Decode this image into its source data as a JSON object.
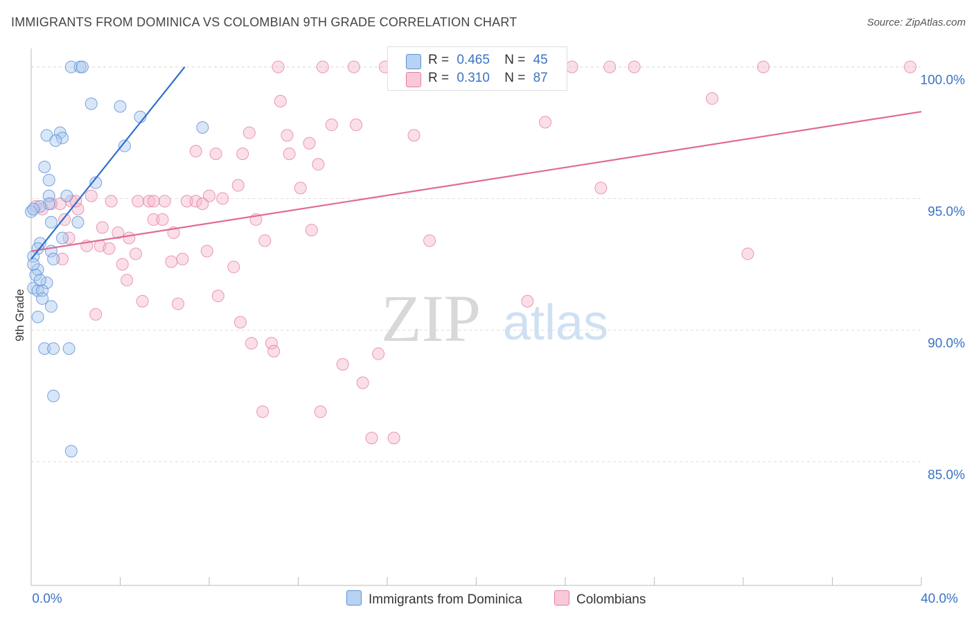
{
  "title": "IMMIGRANTS FROM DOMINICA VS COLOMBIAN 9TH GRADE CORRELATION CHART",
  "source": "Source: ZipAtlas.com",
  "watermark": {
    "zip": "ZIP",
    "atlas": "atlas"
  },
  "legend": {
    "rows": [
      {
        "r_label": "R =",
        "r_value": "0.465",
        "n_label": "N =",
        "n_value": "45"
      },
      {
        "r_label": "R =",
        "r_value": "0.310",
        "n_label": "N =",
        "n_value": "87"
      }
    ]
  },
  "bottom_legend": {
    "series1": "Immigrants from Dominica",
    "series2": "Colombians"
  },
  "colors": {
    "series1_fill": "#a8c8f0",
    "series1_stroke": "#5b8fd6",
    "series1_line": "#2d6fd0",
    "series2_fill": "#f7b8cd",
    "series2_stroke": "#e27fa2",
    "series2_line": "#e06a96",
    "axis_label": "#3a73c4",
    "grid": "#dddddd"
  },
  "chart_data": {
    "type": "scatter",
    "title": "IMMIGRANTS FROM DOMINICA VS COLOMBIAN 9TH GRADE CORRELATION CHART",
    "xlabel": "",
    "ylabel": "9th Grade",
    "xlim": [
      0,
      40
    ],
    "ylim": [
      80.3,
      100.7
    ],
    "x_tick_labels": [
      "0.0%",
      "40.0%"
    ],
    "y_ticks": [
      85,
      90,
      95,
      100
    ],
    "y_tick_labels": [
      "85.0%",
      "90.0%",
      "95.0%",
      "100.0%"
    ],
    "grid": true,
    "legend_position": "top-center",
    "series": [
      {
        "name": "Immigrants from Dominica",
        "R": 0.465,
        "N": 45,
        "trend": {
          "x": [
            0.0,
            6.9
          ],
          "y": [
            92.7,
            100.0
          ]
        },
        "points": [
          [
            1.8,
            100.0
          ],
          [
            2.2,
            100.0
          ],
          [
            2.3,
            100.0
          ],
          [
            2.7,
            98.6
          ],
          [
            4.0,
            98.5
          ],
          [
            4.9,
            98.1
          ],
          [
            7.7,
            97.7
          ],
          [
            1.3,
            97.5
          ],
          [
            0.7,
            97.4
          ],
          [
            1.4,
            97.3
          ],
          [
            1.1,
            97.2
          ],
          [
            4.2,
            97.0
          ],
          [
            0.6,
            96.2
          ],
          [
            0.8,
            95.7
          ],
          [
            2.9,
            95.6
          ],
          [
            0.8,
            95.1
          ],
          [
            1.6,
            95.1
          ],
          [
            0.8,
            94.8
          ],
          [
            0.4,
            94.7
          ],
          [
            0.0,
            94.5
          ],
          [
            0.1,
            94.6
          ],
          [
            0.9,
            94.1
          ],
          [
            2.1,
            94.1
          ],
          [
            1.4,
            93.5
          ],
          [
            0.4,
            93.3
          ],
          [
            0.3,
            93.1
          ],
          [
            0.9,
            93.0
          ],
          [
            0.1,
            92.8
          ],
          [
            1.0,
            92.7
          ],
          [
            0.3,
            92.3
          ],
          [
            0.2,
            92.1
          ],
          [
            0.7,
            91.8
          ],
          [
            0.1,
            91.6
          ],
          [
            0.3,
            91.5
          ],
          [
            0.5,
            91.5
          ],
          [
            0.5,
            91.2
          ],
          [
            0.9,
            90.9
          ],
          [
            0.3,
            90.5
          ],
          [
            0.6,
            89.3
          ],
          [
            1.0,
            89.3
          ],
          [
            1.7,
            89.3
          ],
          [
            1.0,
            87.5
          ],
          [
            1.8,
            85.4
          ],
          [
            0.1,
            92.5
          ],
          [
            0.4,
            91.9
          ]
        ]
      },
      {
        "name": "Colombians",
        "R": 0.31,
        "N": 87,
        "trend": {
          "x": [
            0.0,
            40.0
          ],
          "y": [
            93.0,
            98.3
          ]
        },
        "points": [
          [
            11.1,
            100.0
          ],
          [
            13.1,
            100.0
          ],
          [
            14.5,
            100.0
          ],
          [
            15.9,
            100.0
          ],
          [
            16.9,
            100.0
          ],
          [
            17.5,
            100.0
          ],
          [
            19.5,
            100.0
          ],
          [
            24.3,
            100.0
          ],
          [
            26.0,
            100.0
          ],
          [
            27.1,
            100.0
          ],
          [
            32.9,
            100.0
          ],
          [
            39.5,
            100.0
          ],
          [
            11.2,
            98.7
          ],
          [
            30.6,
            98.8
          ],
          [
            13.5,
            97.8
          ],
          [
            14.6,
            97.8
          ],
          [
            23.1,
            97.9
          ],
          [
            9.8,
            97.5
          ],
          [
            11.5,
            97.4
          ],
          [
            17.2,
            97.4
          ],
          [
            12.5,
            97.1
          ],
          [
            7.4,
            96.8
          ],
          [
            8.3,
            96.7
          ],
          [
            9.5,
            96.7
          ],
          [
            11.6,
            96.7
          ],
          [
            12.9,
            96.3
          ],
          [
            9.3,
            95.5
          ],
          [
            12.1,
            95.4
          ],
          [
            25.6,
            95.4
          ],
          [
            2.7,
            95.1
          ],
          [
            8.0,
            95.1
          ],
          [
            8.6,
            95.0
          ],
          [
            1.8,
            94.9
          ],
          [
            3.6,
            94.9
          ],
          [
            4.8,
            94.9
          ],
          [
            5.3,
            94.9
          ],
          [
            5.5,
            94.9
          ],
          [
            6.0,
            94.9
          ],
          [
            7.0,
            94.9
          ],
          [
            7.4,
            94.9
          ],
          [
            7.7,
            94.8
          ],
          [
            1.3,
            94.8
          ],
          [
            2.1,
            94.6
          ],
          [
            0.9,
            94.8
          ],
          [
            0.5,
            94.6
          ],
          [
            1.5,
            94.2
          ],
          [
            5.5,
            94.2
          ],
          [
            5.9,
            94.2
          ],
          [
            10.1,
            94.2
          ],
          [
            3.2,
            93.9
          ],
          [
            3.9,
            93.7
          ],
          [
            6.4,
            93.7
          ],
          [
            12.6,
            93.8
          ],
          [
            1.7,
            93.5
          ],
          [
            4.4,
            93.5
          ],
          [
            10.5,
            93.4
          ],
          [
            17.9,
            93.4
          ],
          [
            2.5,
            93.2
          ],
          [
            3.1,
            93.2
          ],
          [
            3.5,
            93.1
          ],
          [
            7.9,
            93.0
          ],
          [
            4.7,
            92.9
          ],
          [
            32.2,
            92.9
          ],
          [
            1.4,
            92.7
          ],
          [
            6.3,
            92.6
          ],
          [
            6.8,
            92.7
          ],
          [
            4.1,
            92.5
          ],
          [
            9.1,
            92.4
          ],
          [
            4.3,
            91.9
          ],
          [
            8.4,
            91.3
          ],
          [
            5.0,
            91.1
          ],
          [
            6.6,
            91.0
          ],
          [
            22.3,
            91.1
          ],
          [
            2.9,
            90.6
          ],
          [
            9.4,
            90.3
          ],
          [
            9.9,
            89.5
          ],
          [
            10.8,
            89.5
          ],
          [
            10.9,
            89.2
          ],
          [
            15.6,
            89.1
          ],
          [
            14.0,
            88.7
          ],
          [
            14.9,
            88.0
          ],
          [
            10.4,
            86.9
          ],
          [
            13.0,
            86.9
          ],
          [
            15.3,
            85.9
          ],
          [
            16.3,
            85.9
          ],
          [
            0.2,
            94.7
          ],
          [
            2.0,
            94.9
          ]
        ]
      }
    ]
  },
  "axes": {
    "ylabel": "9th Grade",
    "x_left_label": "0.0%",
    "x_right_label": "40.0%",
    "y_labels": [
      "85.0%",
      "90.0%",
      "95.0%",
      "100.0%"
    ]
  }
}
